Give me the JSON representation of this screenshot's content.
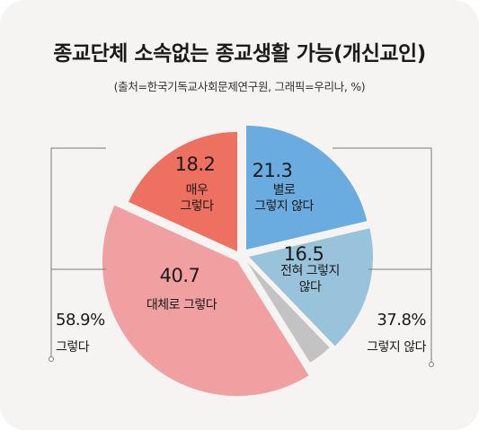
{
  "title": "종교단체 소속없는 종교생활 가능(개신교인)",
  "source": "(출처=한국기독교사회문제연구원,  그래픽=우리나,  %)",
  "colors": {
    "card_bg": "#f6f4f2",
    "very_much": "#ed7060",
    "somewhat_agree": "#f1a0a1",
    "gray": "#c3c3c3",
    "somewhat_disagree": "#98c3db",
    "disagree": "#6aabe0",
    "line": "#7a7a7a"
  },
  "chart_data": {
    "type": "pie",
    "title": "종교단체 소속없는 종교생활 가능(개신교인)",
    "unit": "%",
    "slices": [
      {
        "key": "disagree",
        "value": 21.3,
        "value_label": "21.3",
        "label_lines": [
          "별로",
          "그렇지 않다"
        ]
      },
      {
        "key": "somewhat_disagree",
        "value": 16.5,
        "value_label": "16.5",
        "label_lines": [
          "전혀 그렇지",
          "않다"
        ]
      },
      {
        "key": "gray",
        "value": 3.3,
        "value_label": "",
        "label_lines": []
      },
      {
        "key": "somewhat_agree",
        "value": 40.7,
        "value_label": "40.7",
        "label_lines": [
          "대체로 그렇다"
        ]
      },
      {
        "key": "very_much",
        "value": 18.2,
        "value_label": "18.2",
        "label_lines": [
          "매우",
          "그렇다"
        ]
      }
    ],
    "groups": [
      {
        "key": "agree_total",
        "value_label": "58.9%",
        "label": "그렇다"
      },
      {
        "key": "disagree_total",
        "value_label": "37.8%",
        "label": "그렇지 않다"
      }
    ]
  }
}
